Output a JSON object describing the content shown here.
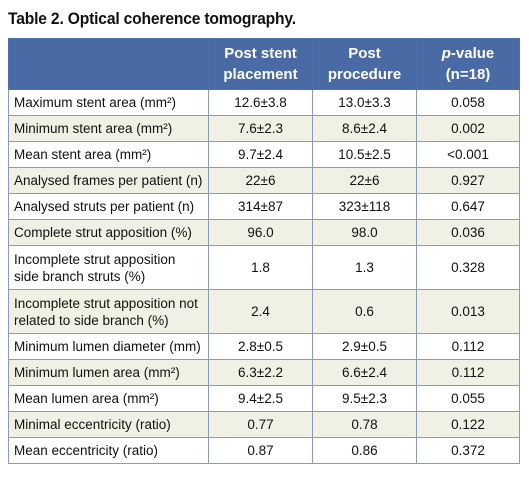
{
  "title": "Table 2. Optical coherence tomography.",
  "columns": {
    "post_stent_line1": "Post stent",
    "post_stent_line2": "placement",
    "post_proc_line1": "Post",
    "post_proc_line2": "procedure",
    "pvalue_italic": "p",
    "pvalue_rest": "-value",
    "pvalue_n": "(n=18)"
  },
  "rows": [
    {
      "label": "Maximum stent area (mm²)",
      "post_stent": "12.6±3.8",
      "post_procedure": "13.0±3.3",
      "p_value": "0.058"
    },
    {
      "label": "Minimum stent area (mm²)",
      "post_stent": "7.6±2.3",
      "post_procedure": "8.6±2.4",
      "p_value": "0.002"
    },
    {
      "label": "Mean stent area (mm²)",
      "post_stent": "9.7±2.4",
      "post_procedure": "10.5±2.5",
      "p_value": "<0.001"
    },
    {
      "label": "Analysed frames per patient (n)",
      "post_stent": "22±6",
      "post_procedure": "22±6",
      "p_value": "0.927"
    },
    {
      "label": "Analysed struts per patient (n)",
      "post_stent": "314±87",
      "post_procedure": "323±118",
      "p_value": "0.647"
    },
    {
      "label": "Complete strut apposition (%)",
      "post_stent": "96.0",
      "post_procedure": "98.0",
      "p_value": "0.036"
    },
    {
      "label_line1": "Incomplete strut apposition",
      "label_line2": "side branch struts (%)",
      "post_stent": "1.8",
      "post_procedure": "1.3",
      "p_value": "0.328"
    },
    {
      "label_line1": "Incomplete strut apposition not",
      "label_line2": "related to side branch (%)",
      "post_stent": "2.4",
      "post_procedure": "0.6",
      "p_value": "0.013"
    },
    {
      "label": "Minimum lumen diameter (mm)",
      "post_stent": "2.8±0.5",
      "post_procedure": "2.9±0.5",
      "p_value": "0.112"
    },
    {
      "label": "Minimum lumen area (mm²)",
      "post_stent": "6.3±2.2",
      "post_procedure": "6.6±2.4",
      "p_value": "0.112"
    },
    {
      "label": "Mean lumen area (mm²)",
      "post_stent": "9.4±2.5",
      "post_procedure": "9.5±2.3",
      "p_value": "0.055"
    },
    {
      "label": "Minimal eccentricity (ratio)",
      "post_stent": "0.77",
      "post_procedure": "0.78",
      "p_value": "0.122"
    },
    {
      "label": "Mean eccentricity (ratio)",
      "post_stent": "0.87",
      "post_procedure": "0.86",
      "p_value": "0.372"
    }
  ],
  "colors": {
    "header_bg": "#4a6aa5",
    "header_text": "#ffffff",
    "row_alt_bg": "#f1f0e4",
    "row_bg": "#ffffff",
    "grid": "#8a9bbd"
  }
}
